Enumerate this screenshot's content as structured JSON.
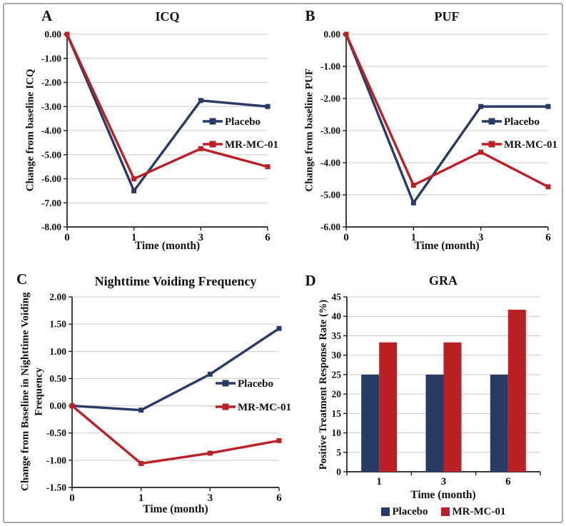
{
  "figure": {
    "panels": [
      {
        "label": "A"
      },
      {
        "label": "B"
      },
      {
        "label": "C"
      },
      {
        "label": "D"
      }
    ]
  },
  "colors": {
    "placebo": "#293A64",
    "mr_mc_01": "#BA2025",
    "gridline": "#C9C9C9",
    "axis": "#1F1F1F",
    "figure_border": "#ABABAB",
    "background": "#FFFFFF"
  },
  "chart_data": [
    {
      "type": "line",
      "title": "ICQ",
      "xlabel": "Time (month)",
      "ylabel": "Change from baseline ICQ",
      "categories": [
        "0",
        "1",
        "3",
        "6"
      ],
      "series": [
        {
          "name": "Placebo",
          "color": "#293A64",
          "values": [
            0.0,
            -6.5,
            -2.75,
            -3.0
          ]
        },
        {
          "name": "MR-MC-01",
          "color": "#BA2025",
          "values": [
            0.0,
            -6.0,
            -4.75,
            -5.5
          ]
        }
      ],
      "ylim": [
        -8,
        0
      ],
      "ystep": 1,
      "ytick_decimals": 2,
      "grid": true,
      "legend_position": "inside-right"
    },
    {
      "type": "line",
      "title": "PUF",
      "xlabel": "Time (month)",
      "ylabel": "Change from baseline PUF",
      "categories": [
        "0",
        "1",
        "3",
        "6"
      ],
      "series": [
        {
          "name": "Placebo",
          "color": "#293A64",
          "values": [
            0.0,
            -5.25,
            -2.25,
            -2.25
          ]
        },
        {
          "name": "MR-MC-01",
          "color": "#BA2025",
          "values": [
            0.0,
            -4.7,
            -3.67,
            -4.75
          ]
        }
      ],
      "ylim": [
        -6,
        0
      ],
      "ystep": 1,
      "ytick_decimals": 2,
      "grid": true,
      "legend_position": "inside-right"
    },
    {
      "type": "line",
      "title": "Nighttime Voiding Frequency",
      "xlabel": "Time (month)",
      "ylabel": "Change from Baseline in Nighttime Voiding Frequency",
      "categories": [
        "0",
        "1",
        "3",
        "6"
      ],
      "series": [
        {
          "name": "Placebo",
          "color": "#293A64",
          "values": [
            0.0,
            -0.08,
            0.58,
            1.42
          ]
        },
        {
          "name": "MR-MC-01",
          "color": "#BA2025",
          "values": [
            0.0,
            -1.06,
            -0.87,
            -0.64
          ]
        }
      ],
      "ylim": [
        -1.5,
        2
      ],
      "ystep": 0.5,
      "ytick_decimals": 2,
      "grid": true,
      "legend_position": "inside-right"
    },
    {
      "type": "bar",
      "title": "GRA",
      "xlabel": "Time (month)",
      "ylabel": "Positive Treatment Response Rate (%)",
      "categories": [
        "1",
        "3",
        "6"
      ],
      "series": [
        {
          "name": "Placebo",
          "color": "#293A64",
          "values": [
            25,
            25,
            25
          ]
        },
        {
          "name": "MR-MC-01",
          "color": "#BA2025",
          "values": [
            33.3,
            33.3,
            41.7
          ]
        }
      ],
      "ylim": [
        0,
        45
      ],
      "ystep": 5,
      "ytick_decimals": 0,
      "grid": true,
      "legend_position": "bottom"
    }
  ]
}
